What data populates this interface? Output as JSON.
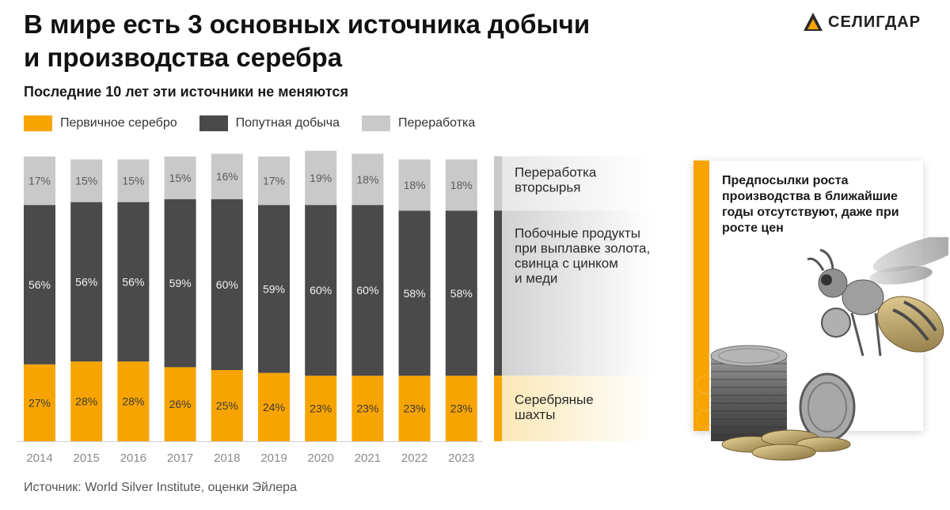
{
  "title_lines": [
    "В мире есть 3 основных источника добычи",
    "и производства серебра"
  ],
  "subtitle": "Последние 10 лет эти источники не меняются",
  "brand": "СЕЛИГДАР",
  "legend": [
    {
      "label": "Первичное серебро",
      "color": "#f7a400"
    },
    {
      "label": "Попутная добыча",
      "color": "#4a4a4a"
    },
    {
      "label": "Переработка",
      "color": "#c9c9c9"
    }
  ],
  "source": "Источник: World Silver Institute, оценки Эйлера",
  "panel_text": "Предпосылки роста производства в ближайшие годы отсутствуют, даже при росте цен",
  "chart_data": {
    "type": "bar",
    "stacked": true,
    "categories": [
      "2014",
      "2015",
      "2016",
      "2017",
      "2018",
      "2019",
      "2020",
      "2021",
      "2022",
      "2023"
    ],
    "series": [
      {
        "name": "Первичное серебро",
        "color": "#f7a400",
        "values": [
          27,
          28,
          28,
          26,
          25,
          24,
          23,
          23,
          23,
          23
        ]
      },
      {
        "name": "Попутная добыча",
        "color": "#4a4a4a",
        "values": [
          56,
          56,
          56,
          59,
          60,
          59,
          60,
          60,
          58,
          58
        ]
      },
      {
        "name": "Переработка",
        "color": "#c9c9c9",
        "values": [
          17,
          15,
          15,
          15,
          16,
          17,
          19,
          18,
          18,
          18
        ]
      }
    ],
    "value_suffix": "%",
    "side_labels": [
      {
        "series": "Переработка",
        "lines": [
          "Переработка",
          "вторсырья"
        ]
      },
      {
        "series": "Попутная добыча",
        "lines": [
          "Побочные продукты",
          "при выплавке золота,",
          "свинца с цинком",
          "и меди"
        ]
      },
      {
        "series": "Первичное серебро",
        "lines": [
          "Серебряные",
          "шахты"
        ]
      }
    ]
  }
}
